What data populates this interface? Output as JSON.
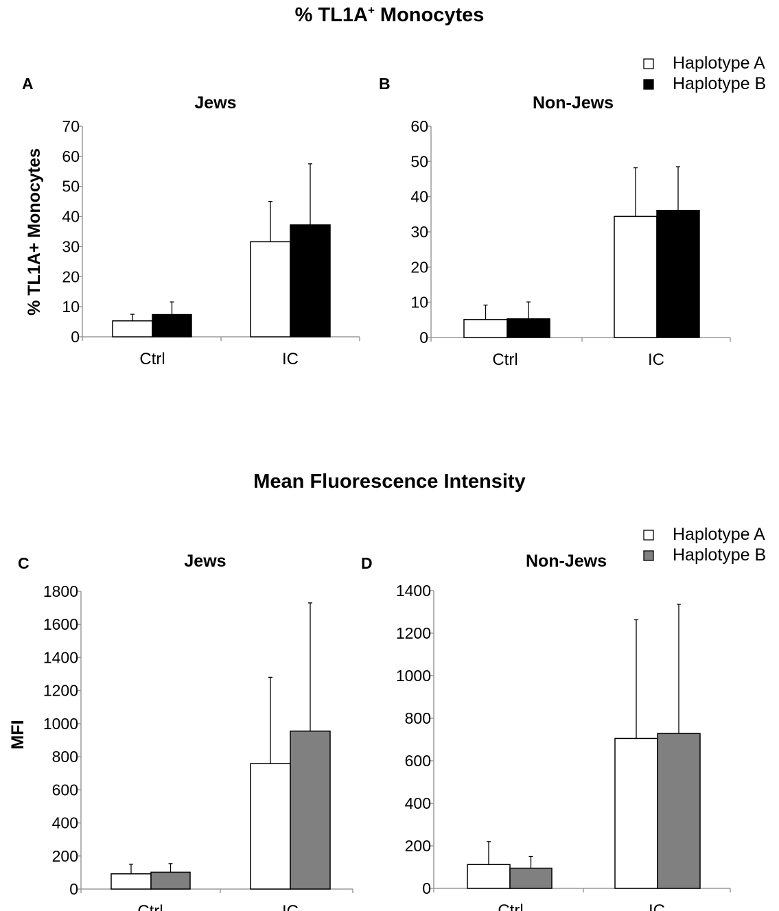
{
  "sections": {
    "top_title": {
      "main": "% TL1A",
      "sup": "+",
      "rest": " Monocytes"
    },
    "bottom_title": "Mean Fluorescence Intensity"
  },
  "colors": {
    "haplotype_a": "#ffffff",
    "haplotype_b_top": "#000000",
    "haplotype_b_bottom": "#808080",
    "axis": "#9a9a9a",
    "stroke": "#000000"
  },
  "chart_data": [
    {
      "id": "A",
      "type": "bar",
      "letter": "A",
      "title": "Jews",
      "ylabel": "% TL1A+ Monocytes",
      "ylim": [
        0,
        70
      ],
      "yticks": [
        0,
        10,
        20,
        30,
        40,
        50,
        60,
        70
      ],
      "categories": [
        "Ctrl",
        "IC"
      ],
      "series": [
        {
          "name": "Haplotype A",
          "color": "#ffffff",
          "values": [
            5.3,
            31.6
          ],
          "errors": [
            2.2,
            13.4
          ]
        },
        {
          "name": "Haplotype B",
          "color": "#000000",
          "values": [
            7.4,
            37.2
          ],
          "errors": [
            4.2,
            20.3
          ]
        }
      ],
      "legend": null
    },
    {
      "id": "B",
      "type": "bar",
      "letter": "B",
      "title": "Non-Jews",
      "ylabel": "",
      "ylim": [
        0,
        60
      ],
      "yticks": [
        0,
        10,
        20,
        30,
        40,
        50,
        60
      ],
      "categories": [
        "Ctrl",
        "IC"
      ],
      "series": [
        {
          "name": "Haplotype A",
          "color": "#ffffff",
          "values": [
            5.1,
            34.4
          ],
          "errors": [
            4.1,
            13.8
          ]
        },
        {
          "name": "Haplotype B",
          "color": "#000000",
          "values": [
            5.3,
            36.1
          ],
          "errors": [
            4.8,
            12.4
          ]
        }
      ],
      "legend": {
        "position": "top-right",
        "entries": [
          "Haplotype A",
          "Haplotype B"
        ]
      }
    },
    {
      "id": "C",
      "type": "bar",
      "letter": "C",
      "title": "Jews",
      "ylabel": "MFI",
      "ylim": [
        0,
        1800
      ],
      "yticks": [
        0,
        200,
        400,
        600,
        800,
        1000,
        1200,
        1400,
        1600,
        1800
      ],
      "categories": [
        "Ctrl",
        "IC"
      ],
      "series": [
        {
          "name": "Haplotype A",
          "color": "#ffffff",
          "values": [
            92,
            758
          ],
          "errors": [
            58,
            522
          ]
        },
        {
          "name": "Haplotype B",
          "color": "#808080",
          "values": [
            102,
            955
          ],
          "errors": [
            52,
            775
          ]
        }
      ],
      "legend": null
    },
    {
      "id": "D",
      "type": "bar",
      "letter": "D",
      "title": "Non-Jews",
      "ylabel": "",
      "ylim": [
        0,
        1400
      ],
      "yticks": [
        0,
        200,
        400,
        600,
        800,
        1000,
        1200,
        1400
      ],
      "categories": [
        "Ctrl",
        "IC"
      ],
      "series": [
        {
          "name": "Haplotype A",
          "color": "#ffffff",
          "values": [
            112,
            705
          ],
          "errors": [
            108,
            558
          ]
        },
        {
          "name": "Haplotype B",
          "color": "#808080",
          "values": [
            95,
            728
          ],
          "errors": [
            55,
            608
          ]
        }
      ],
      "legend": {
        "position": "top-right",
        "entries": [
          "Haplotype A",
          "Haplotype B"
        ]
      }
    }
  ]
}
